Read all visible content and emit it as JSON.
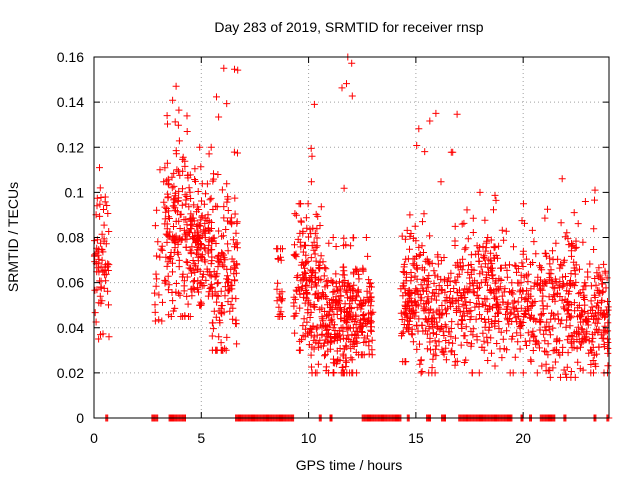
{
  "chart_data": {
    "type": "scatter",
    "title": "Day 283 of 2019, SRMTID for receiver rnsp",
    "xlabel": "GPS time / hours",
    "ylabel": "SRMTID / TECUs",
    "xlim": [
      0,
      24
    ],
    "ylim": [
      0,
      0.16
    ],
    "x_ticks": [
      "0",
      "5",
      "10",
      "15",
      "20"
    ],
    "x_tick_values": [
      0,
      5,
      10,
      15,
      20
    ],
    "y_ticks": [
      "0",
      "0.02",
      "0.04",
      "0.06",
      "0.08",
      "0.1",
      "0.12",
      "0.14",
      "0.16"
    ],
    "y_tick_values": [
      0,
      0.02,
      0.04,
      0.06,
      0.08,
      0.1,
      0.12,
      0.14,
      0.16
    ],
    "grid": true,
    "legend": "none",
    "marker": "+",
    "colors": {
      "points": "#ff0000",
      "grid": "#a0a0a0",
      "axis": "#000000"
    },
    "series": [
      {
        "name": "SRMTID",
        "clusters": [
          {
            "x_start": 0.0,
            "x_end": 0.7,
            "n": 70,
            "y_mean": 0.068,
            "y_sd": 0.014,
            "y_min": 0.035,
            "y_max": 0.111
          },
          {
            "x_start": 2.8,
            "x_end": 3.3,
            "n": 22,
            "y_mean": 0.07,
            "y_sd": 0.02,
            "y_min": 0.043,
            "y_max": 0.11
          },
          {
            "x_start": 3.3,
            "x_end": 4.5,
            "n": 160,
            "y_mean": 0.085,
            "y_sd": 0.02,
            "y_min": 0.045,
            "y_max": 0.147
          },
          {
            "x_start": 4.5,
            "x_end": 5.5,
            "n": 150,
            "y_mean": 0.075,
            "y_sd": 0.014,
            "y_min": 0.05,
            "y_max": 0.12
          },
          {
            "x_start": 5.5,
            "x_end": 6.7,
            "n": 140,
            "y_mean": 0.065,
            "y_sd": 0.022,
            "y_min": 0.03,
            "y_max": 0.155
          },
          {
            "x_start": 8.5,
            "x_end": 8.8,
            "n": 22,
            "y_mean": 0.058,
            "y_sd": 0.01,
            "y_min": 0.045,
            "y_max": 0.075
          },
          {
            "x_start": 9.3,
            "x_end": 10.0,
            "n": 85,
            "y_mean": 0.06,
            "y_sd": 0.016,
            "y_min": 0.03,
            "y_max": 0.095
          },
          {
            "x_start": 10.0,
            "x_end": 10.6,
            "n": 90,
            "y_mean": 0.055,
            "y_sd": 0.02,
            "y_min": 0.02,
            "y_max": 0.139
          },
          {
            "x_start": 10.6,
            "x_end": 11.5,
            "n": 120,
            "y_mean": 0.045,
            "y_sd": 0.012,
            "y_min": 0.02,
            "y_max": 0.08
          },
          {
            "x_start": 11.5,
            "x_end": 12.3,
            "n": 130,
            "y_mean": 0.042,
            "y_sd": 0.015,
            "y_min": 0.02,
            "y_max": 0.16
          },
          {
            "x_start": 12.3,
            "x_end": 13.0,
            "n": 75,
            "y_mean": 0.048,
            "y_sd": 0.012,
            "y_min": 0.028,
            "y_max": 0.08
          },
          {
            "x_start": 14.3,
            "x_end": 15.0,
            "n": 95,
            "y_mean": 0.05,
            "y_sd": 0.012,
            "y_min": 0.025,
            "y_max": 0.09
          },
          {
            "x_start": 15.0,
            "x_end": 17.0,
            "n": 210,
            "y_mean": 0.05,
            "y_sd": 0.014,
            "y_min": 0.02,
            "y_max": 0.135
          },
          {
            "x_start": 17.0,
            "x_end": 19.0,
            "n": 210,
            "y_mean": 0.055,
            "y_sd": 0.014,
            "y_min": 0.02,
            "y_max": 0.1
          },
          {
            "x_start": 19.0,
            "x_end": 21.0,
            "n": 170,
            "y_mean": 0.05,
            "y_sd": 0.013,
            "y_min": 0.02,
            "y_max": 0.095
          },
          {
            "x_start": 21.0,
            "x_end": 22.5,
            "n": 160,
            "y_mean": 0.05,
            "y_sd": 0.016,
            "y_min": 0.018,
            "y_max": 0.106
          },
          {
            "x_start": 22.5,
            "x_end": 24.0,
            "n": 160,
            "y_mean": 0.045,
            "y_sd": 0.012,
            "y_min": 0.02,
            "y_max": 0.101
          }
        ],
        "zero_segments": [
          [
            0.55,
            0.65
          ],
          [
            2.7,
            3.0
          ],
          [
            3.5,
            4.3
          ],
          [
            6.6,
            9.3
          ],
          [
            10.5,
            10.6
          ],
          [
            11.0,
            11.1
          ],
          [
            12.5,
            14.3
          ],
          [
            14.6,
            14.7
          ],
          [
            15.5,
            15.7
          ],
          [
            16.2,
            16.4
          ],
          [
            17.0,
            19.5
          ],
          [
            19.9,
            20.0
          ],
          [
            20.3,
            20.4
          ],
          [
            20.8,
            21.5
          ],
          [
            21.9,
            22.0
          ],
          [
            23.3,
            23.4
          ],
          [
            23.9,
            24.0
          ]
        ]
      }
    ]
  }
}
